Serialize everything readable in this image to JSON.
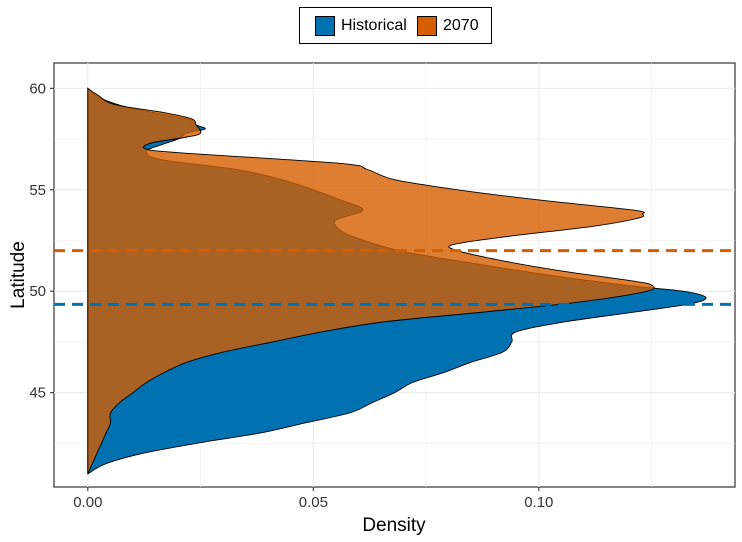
{
  "chart_data": {
    "type": "area",
    "xlabel": "Density",
    "ylabel": "Latitude",
    "xlim": [
      -0.0075,
      0.1435
    ],
    "ylim": [
      40.35,
      61.25
    ],
    "x_ticks": [
      {
        "value": 0.0,
        "label": "0.00"
      },
      {
        "value": 0.05,
        "label": "0.05"
      },
      {
        "value": 0.1,
        "label": "0.10"
      }
    ],
    "y_ticks": [
      {
        "value": 45,
        "label": "45"
      },
      {
        "value": 50,
        "label": "50"
      },
      {
        "value": 55,
        "label": "55"
      },
      {
        "value": 60,
        "label": "60"
      }
    ],
    "grid": true,
    "legend_position": "top",
    "series": [
      {
        "name": "Historical",
        "color": "#0072B2",
        "mean_latitude": 49.35,
        "latitude": [
          41.0,
          41.5,
          42.0,
          42.5,
          43.0,
          43.5,
          44.0,
          44.5,
          45.0,
          45.5,
          46.0,
          46.5,
          47.0,
          47.5,
          48.0,
          48.5,
          49.0,
          49.4,
          49.7,
          50.0,
          50.3,
          50.8,
          51.5,
          52.0,
          52.6,
          53.0,
          53.5,
          54.0,
          54.5,
          55.0,
          55.5,
          56.0,
          56.5,
          56.9,
          57.2,
          57.5,
          57.8,
          58.0,
          58.2,
          58.5,
          59.0,
          59.5,
          60.0
        ],
        "density": [
          0.0,
          0.004,
          0.012,
          0.024,
          0.038,
          0.048,
          0.058,
          0.063,
          0.068,
          0.072,
          0.079,
          0.085,
          0.092,
          0.094,
          0.095,
          0.106,
          0.122,
          0.134,
          0.137,
          0.132,
          0.119,
          0.102,
          0.082,
          0.069,
          0.06,
          0.056,
          0.055,
          0.061,
          0.056,
          0.05,
          0.043,
          0.033,
          0.016,
          0.013,
          0.016,
          0.02,
          0.022,
          0.026,
          0.024,
          0.022,
          0.01,
          0.003,
          0.0
        ]
      },
      {
        "name": "2070",
        "color": "#D55E00",
        "mean_latitude": 52.0,
        "latitude": [
          41.0,
          41.5,
          42.0,
          42.5,
          43.0,
          43.5,
          44.0,
          44.5,
          45.0,
          45.5,
          46.0,
          46.5,
          47.0,
          47.5,
          48.0,
          48.5,
          49.0,
          49.5,
          50.0,
          50.3,
          50.5,
          51.0,
          51.5,
          52.0,
          52.3,
          52.7,
          53.2,
          53.6,
          53.8,
          54.0,
          54.5,
          55.0,
          55.5,
          56.0,
          56.3,
          56.8,
          57.0,
          57.3,
          57.6,
          57.8,
          58.2,
          58.5,
          58.8,
          59.2,
          59.7,
          60.0
        ],
        "density": [
          0.0,
          0.001,
          0.002,
          0.003,
          0.004,
          0.005,
          0.005,
          0.007,
          0.01,
          0.013,
          0.017,
          0.022,
          0.03,
          0.041,
          0.052,
          0.066,
          0.089,
          0.11,
          0.124,
          0.125,
          0.121,
          0.105,
          0.092,
          0.082,
          0.081,
          0.093,
          0.112,
          0.122,
          0.123,
          0.121,
          0.1,
          0.082,
          0.068,
          0.062,
          0.056,
          0.022,
          0.013,
          0.014,
          0.022,
          0.025,
          0.024,
          0.023,
          0.017,
          0.006,
          0.002,
          0.0
        ]
      }
    ]
  }
}
